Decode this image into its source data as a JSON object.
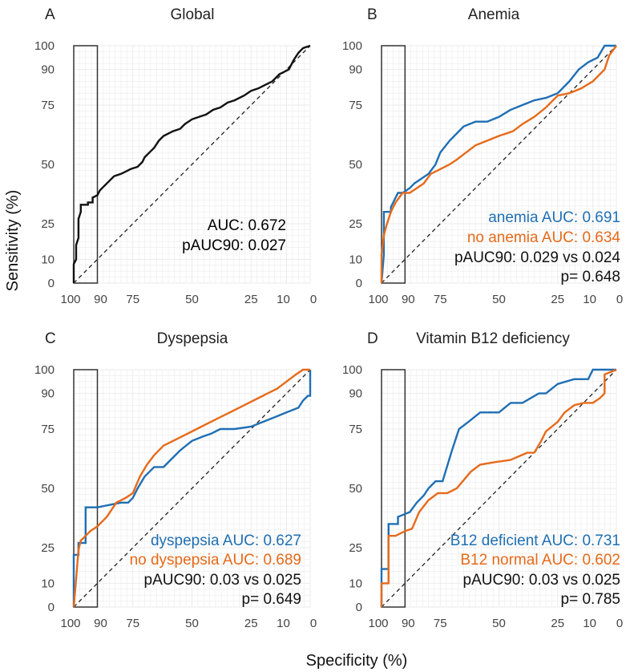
{
  "figure": {
    "xlabel": "Specificity (%)",
    "ylabel": "Sensitivity (%)"
  },
  "colors": {
    "global": "#111111",
    "blue": "#1f6fb4",
    "orange": "#e66a1a",
    "text": "#111111",
    "grid": "#ebebeb"
  },
  "chart_data": [
    {
      "type": "line",
      "panel": "A",
      "title": "Global",
      "xlabel": "Specificity (%)",
      "ylabel": "Sensitivity (%)",
      "xlim": [
        100,
        0
      ],
      "ylim": [
        0,
        100
      ],
      "x_ticks": [
        100,
        90,
        75,
        50,
        25,
        10,
        0
      ],
      "y_ticks": [
        0,
        10,
        25,
        50,
        75,
        90,
        100
      ],
      "partial_region": [
        100,
        90
      ],
      "series": [
        {
          "name": "Global",
          "color": "#111111",
          "specificity": [
            100,
            100,
            99,
            99,
            98,
            98,
            97,
            97,
            94,
            94,
            92,
            92,
            90,
            89,
            88,
            86,
            84,
            83,
            80,
            78,
            76,
            73,
            71,
            70,
            68,
            66,
            64,
            62,
            58,
            55,
            53,
            50,
            47,
            44,
            41,
            38,
            35,
            32,
            28,
            25,
            22,
            20,
            16,
            13,
            11,
            9,
            7,
            5,
            3,
            0
          ],
          "sensitivity": [
            0,
            8,
            10,
            16,
            19,
            27,
            30,
            33,
            33,
            34,
            34,
            36,
            37,
            39,
            40,
            42,
            44,
            45,
            46,
            47,
            48,
            49,
            51,
            53,
            55,
            57,
            60,
            62,
            64,
            65,
            67,
            69,
            70,
            71,
            73,
            74,
            76,
            77,
            79,
            81,
            82,
            83,
            85,
            88,
            89,
            90,
            94,
            97,
            99,
            100
          ]
        }
      ],
      "annotations": [
        "AUC: 0.672",
        "pAUC90: 0.027"
      ]
    },
    {
      "type": "line",
      "panel": "B",
      "title": "Anemia",
      "xlabel": "Specificity (%)",
      "ylabel": "Sensitivity (%)",
      "xlim": [
        100,
        0
      ],
      "ylim": [
        0,
        100
      ],
      "x_ticks": [
        100,
        90,
        75,
        50,
        25,
        10,
        0
      ],
      "y_ticks": [
        0,
        10,
        25,
        50,
        75,
        90,
        100
      ],
      "partial_region": [
        100,
        90
      ],
      "series": [
        {
          "name": "anemia",
          "color": "#1f6fb4",
          "specificity": [
            100,
            99,
            99,
            96,
            96,
            93,
            91,
            88,
            86,
            83,
            80,
            77,
            75,
            71,
            68,
            65,
            60,
            55,
            50,
            45,
            40,
            35,
            30,
            25,
            20,
            16,
            12,
            8,
            5,
            3,
            0
          ],
          "sensitivity": [
            0,
            12,
            30,
            30,
            32,
            38,
            38,
            40,
            42,
            44,
            46,
            50,
            55,
            60,
            63,
            66,
            68,
            68,
            70,
            73,
            75,
            77,
            78,
            80,
            85,
            90,
            93,
            95,
            100,
            100,
            100
          ]
        },
        {
          "name": "no anemia",
          "color": "#e66a1a",
          "specificity": [
            100,
            100,
            99,
            98,
            96,
            94,
            91,
            88,
            85,
            82,
            79,
            75,
            71,
            68,
            64,
            60,
            55,
            50,
            44,
            40,
            35,
            30,
            25,
            20,
            15,
            10,
            5,
            3,
            0
          ],
          "sensitivity": [
            0,
            12,
            20,
            24,
            30,
            34,
            38,
            38,
            40,
            42,
            46,
            48,
            50,
            52,
            55,
            58,
            60,
            62,
            64,
            67,
            70,
            74,
            79,
            80,
            82,
            85,
            90,
            96,
            100
          ]
        }
      ],
      "annotations": [
        "anemia AUC: 0.691",
        "no anemia AUC: 0.634",
        "pAUC90: 0.029 vs 0.024",
        "p= 0.648"
      ]
    },
    {
      "type": "line",
      "panel": "C",
      "title": "Dyspepsia",
      "xlabel": "Specificity (%)",
      "ylabel": "Sensitivity (%)",
      "xlim": [
        100,
        0
      ],
      "ylim": [
        0,
        100
      ],
      "x_ticks": [
        100,
        90,
        75,
        50,
        25,
        10,
        0
      ],
      "y_ticks": [
        0,
        10,
        25,
        50,
        75,
        90,
        100
      ],
      "partial_region": [
        100,
        90
      ],
      "series": [
        {
          "name": "dyspepsia",
          "color": "#1f6fb4",
          "specificity": [
            100,
            100,
            98,
            98,
            95,
            95,
            90,
            85,
            80,
            77,
            75,
            73,
            70,
            66,
            62,
            58,
            55,
            50,
            45,
            42,
            38,
            32,
            25,
            20,
            15,
            10,
            5,
            3,
            1,
            0,
            0
          ],
          "sensitivity": [
            0,
            22,
            22,
            27,
            27,
            42,
            42,
            43,
            44,
            44,
            46,
            50,
            55,
            59,
            59,
            63,
            66,
            70,
            72,
            73,
            75,
            75,
            76,
            78,
            80,
            82,
            84,
            87,
            89,
            89,
            100
          ]
        },
        {
          "name": "no dyspepsia",
          "color": "#e66a1a",
          "specificity": [
            100,
            99,
            98,
            97,
            95,
            93,
            90,
            86,
            82,
            78,
            75,
            72,
            69,
            66,
            62,
            58,
            54,
            50,
            46,
            42,
            38,
            34,
            30,
            26,
            22,
            18,
            14,
            10,
            6,
            3,
            0
          ],
          "sensitivity": [
            0,
            12,
            24,
            28,
            30,
            32,
            34,
            38,
            44,
            46,
            48,
            55,
            60,
            64,
            68,
            70,
            72,
            74,
            76,
            78,
            80,
            82,
            84,
            86,
            88,
            90,
            92,
            95,
            98,
            100,
            100
          ]
        }
      ],
      "annotations": [
        "dyspepsia AUC: 0.627",
        "no dyspepsia AUC: 0.689",
        "pAUC90: 0.03 vs 0.025",
        "p= 0.649"
      ]
    },
    {
      "type": "line",
      "panel": "D",
      "title": "Vitamin B12 deficiency",
      "xlabel": "Specificity (%)",
      "ylabel": "Sensitivity (%)",
      "xlim": [
        100,
        0
      ],
      "ylim": [
        0,
        100
      ],
      "x_ticks": [
        100,
        90,
        75,
        50,
        25,
        10,
        0
      ],
      "y_ticks": [
        0,
        10,
        25,
        50,
        75,
        90,
        100
      ],
      "partial_region": [
        100,
        90
      ],
      "series": [
        {
          "name": "B12 deficient",
          "color": "#1f6fb4",
          "specificity": [
            100,
            100,
            97,
            97,
            93,
            93,
            88,
            85,
            82,
            80,
            77,
            74,
            70,
            67,
            63,
            58,
            50,
            45,
            40,
            33,
            30,
            25,
            18,
            12,
            10,
            5,
            5,
            0
          ],
          "sensitivity": [
            0,
            16,
            16,
            35,
            35,
            38,
            40,
            44,
            47,
            50,
            53,
            53,
            66,
            75,
            78,
            82,
            82,
            86,
            86,
            90,
            90,
            94,
            96,
            96,
            100,
            100,
            100,
            100
          ]
        },
        {
          "name": "B12 normal",
          "color": "#e66a1a",
          "specificity": [
            100,
            100,
            97,
            97,
            94,
            90,
            87,
            84,
            80,
            76,
            72,
            68,
            62,
            58,
            52,
            45,
            38,
            35,
            32,
            30,
            25,
            22,
            18,
            14,
            10,
            7,
            5,
            5,
            0
          ],
          "sensitivity": [
            0,
            10,
            10,
            30,
            30,
            32,
            33,
            40,
            45,
            48,
            48,
            50,
            57,
            60,
            61,
            62,
            65,
            65,
            70,
            74,
            78,
            82,
            85,
            86,
            86,
            88,
            90,
            98,
            100
          ]
        }
      ],
      "annotations": [
        "B12 deficient AUC: 0.731",
        "B12 normal AUC: 0.602",
        "pAUC90: 0.03 vs 0.025",
        "p= 0.785"
      ]
    }
  ]
}
